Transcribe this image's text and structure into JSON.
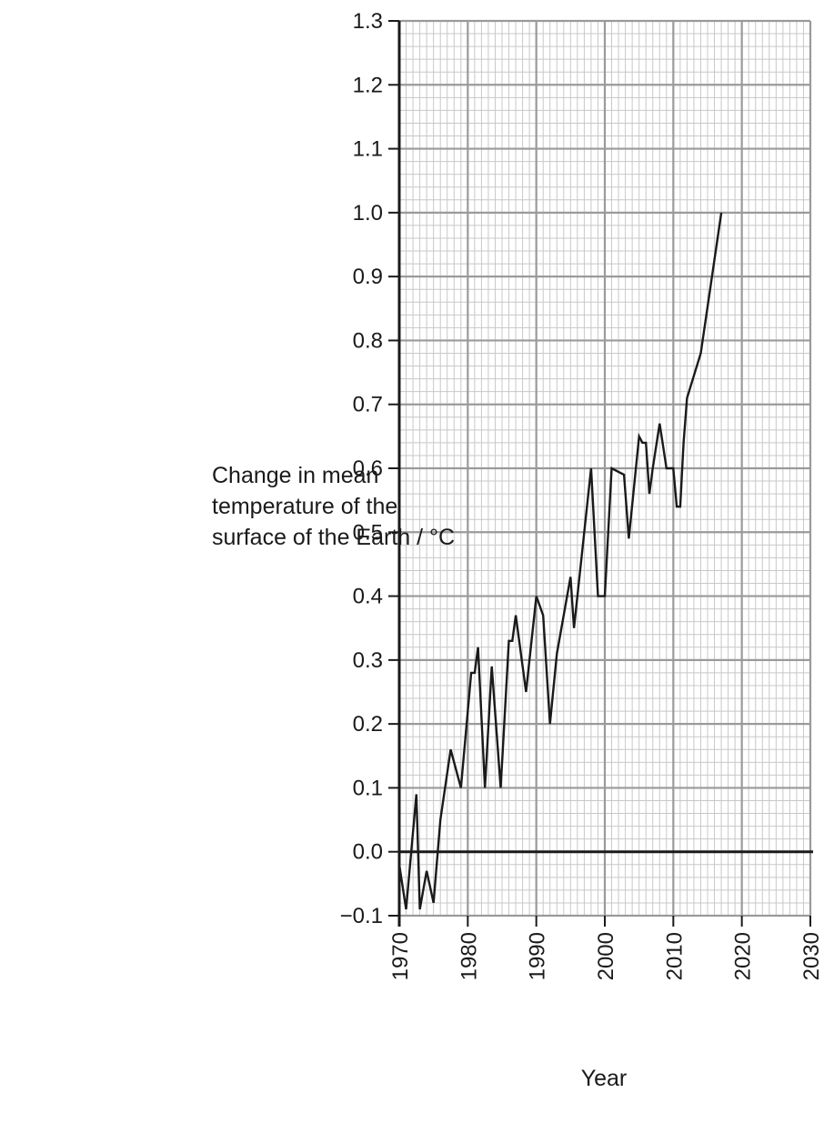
{
  "chart_data": {
    "type": "line",
    "title": "",
    "ylabel_lines": [
      "Change in mean",
      "temperature of the",
      "surface of the Earth / °C"
    ],
    "xlabel": "Year",
    "xlim": [
      1970,
      2030
    ],
    "ylim": [
      -0.1,
      1.3
    ],
    "x_ticks": [
      1970,
      1980,
      1990,
      2000,
      2010,
      2020,
      2030
    ],
    "x_tick_labels": [
      "1970",
      "1980",
      "1990",
      "2000",
      "2010",
      "2020",
      "2030"
    ],
    "y_ticks": [
      -0.1,
      0.0,
      0.1,
      0.2,
      0.3,
      0.4,
      0.5,
      0.6,
      0.7,
      0.8,
      0.9,
      1.0,
      1.1,
      1.2,
      1.3
    ],
    "y_tick_labels": [
      "−0.1",
      "0.0",
      "0.1",
      "0.2",
      "0.3",
      "0.4",
      "0.5",
      "0.6",
      "0.7",
      "0.8",
      "0.9",
      "1.0",
      "1.1",
      "1.2",
      "1.3"
    ],
    "grid": true,
    "x_minor_step": 1,
    "y_minor_step": 0.02,
    "line_color": "#1a1a1a",
    "grid_minor_color": "#c8c8c8",
    "grid_major_color": "#9a9a9a",
    "series": [
      {
        "x": [
          1970,
          1971,
          1972.5,
          1973,
          1974,
          1975,
          1976,
          1977.5,
          1979,
          1980.5,
          1981,
          1981.5,
          1982.5,
          1983.5,
          1984.8,
          1986,
          1986.5,
          1987,
          1988.5,
          1990,
          1991,
          1992,
          1993,
          1995,
          1995.5,
          1998,
          1999,
          2000,
          2001,
          2002.8,
          2003.5,
          2005,
          2005.5,
          2006,
          2006.5,
          2007,
          2008,
          2009,
          2010,
          2010.5,
          2011,
          2011.5,
          2012,
          2014,
          2017
        ],
        "y": [
          -0.02,
          -0.09,
          0.09,
          -0.09,
          -0.03,
          -0.08,
          0.05,
          0.16,
          0.1,
          0.28,
          0.28,
          0.32,
          0.1,
          0.29,
          0.1,
          0.33,
          0.33,
          0.37,
          0.25,
          0.4,
          0.37,
          0.2,
          0.31,
          0.43,
          0.35,
          0.6,
          0.4,
          0.4,
          0.6,
          0.59,
          0.49,
          0.65,
          0.64,
          0.64,
          0.56,
          0.6,
          0.67,
          0.6,
          0.6,
          0.54,
          0.54,
          0.64,
          0.71,
          0.78,
          1.0
        ]
      }
    ]
  }
}
